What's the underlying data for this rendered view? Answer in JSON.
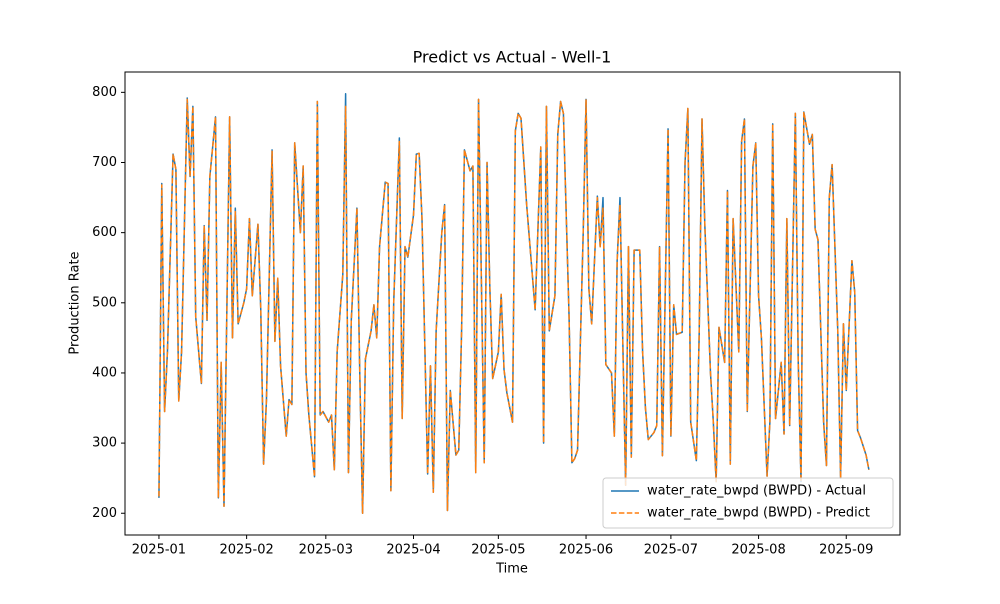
{
  "chart_data": {
    "type": "line",
    "title": "Predict vs Actual - Well-1",
    "xlabel": "Time",
    "ylabel": "Production Rate",
    "x": [
      "2025-01-01",
      "2025-01-02",
      "2025-01-03",
      "2025-01-04",
      "2025-01-06",
      "2025-01-07",
      "2025-01-08",
      "2025-01-09",
      "2025-01-11",
      "2025-01-12",
      "2025-01-13",
      "2025-01-14",
      "2025-01-16",
      "2025-01-17",
      "2025-01-18",
      "2025-01-19",
      "2025-01-21",
      "2025-01-22",
      "2025-01-23",
      "2025-01-24",
      "2025-01-26",
      "2025-01-27",
      "2025-01-28",
      "2025-01-29",
      "2025-01-31",
      "2025-02-01",
      "2025-02-02",
      "2025-02-03",
      "2025-02-05",
      "2025-02-06",
      "2025-02-07",
      "2025-02-08",
      "2025-02-10",
      "2025-02-11",
      "2025-02-12",
      "2025-02-13",
      "2025-02-15",
      "2025-02-16",
      "2025-02-17",
      "2025-02-18",
      "2025-02-20",
      "2025-02-21",
      "2025-02-22",
      "2025-02-23",
      "2025-02-25",
      "2025-02-26",
      "2025-02-27",
      "2025-02-28",
      "2025-03-02",
      "2025-03-03",
      "2025-03-04",
      "2025-03-05",
      "2025-03-07",
      "2025-03-08",
      "2025-03-09",
      "2025-03-10",
      "2025-03-12",
      "2025-03-13",
      "2025-03-14",
      "2025-03-15",
      "2025-03-17",
      "2025-03-18",
      "2025-03-19",
      "2025-03-20",
      "2025-03-22",
      "2025-03-23",
      "2025-03-24",
      "2025-03-25",
      "2025-03-27",
      "2025-03-28",
      "2025-03-29",
      "2025-03-30",
      "2025-04-01",
      "2025-04-02",
      "2025-04-03",
      "2025-04-04",
      "2025-04-06",
      "2025-04-07",
      "2025-04-08",
      "2025-04-09",
      "2025-04-11",
      "2025-04-12",
      "2025-04-13",
      "2025-04-14",
      "2025-04-16",
      "2025-04-17",
      "2025-04-18",
      "2025-04-19",
      "2025-04-21",
      "2025-04-22",
      "2025-04-23",
      "2025-04-24",
      "2025-04-26",
      "2025-04-27",
      "2025-04-28",
      "2025-04-29",
      "2025-05-01",
      "2025-05-02",
      "2025-05-03",
      "2025-05-04",
      "2025-05-06",
      "2025-05-07",
      "2025-05-08",
      "2025-05-09",
      "2025-05-11",
      "2025-05-12",
      "2025-05-13",
      "2025-05-14",
      "2025-05-16",
      "2025-05-17",
      "2025-05-18",
      "2025-05-19",
      "2025-05-21",
      "2025-05-22",
      "2025-05-23",
      "2025-05-24",
      "2025-05-26",
      "2025-05-27",
      "2025-05-28",
      "2025-05-29",
      "2025-05-31",
      "2025-06-01",
      "2025-06-02",
      "2025-06-03",
      "2025-06-05",
      "2025-06-06",
      "2025-06-07",
      "2025-06-08",
      "2025-06-10",
      "2025-06-11",
      "2025-06-12",
      "2025-06-13",
      "2025-06-15",
      "2025-06-16",
      "2025-06-17",
      "2025-06-18",
      "2025-06-20",
      "2025-06-21",
      "2025-06-22",
      "2025-06-23",
      "2025-06-25",
      "2025-06-26",
      "2025-06-27",
      "2025-06-28",
      "2025-06-30",
      "2025-07-01",
      "2025-07-02",
      "2025-07-03",
      "2025-07-05",
      "2025-07-06",
      "2025-07-07",
      "2025-07-08",
      "2025-07-10",
      "2025-07-11",
      "2025-07-12",
      "2025-07-13",
      "2025-07-15",
      "2025-07-16",
      "2025-07-17",
      "2025-07-18",
      "2025-07-20",
      "2025-07-21",
      "2025-07-22",
      "2025-07-23",
      "2025-07-25",
      "2025-07-26",
      "2025-07-27",
      "2025-07-28",
      "2025-07-30",
      "2025-07-31",
      "2025-08-01",
      "2025-08-02",
      "2025-08-04",
      "2025-08-05",
      "2025-08-06",
      "2025-08-07",
      "2025-08-09",
      "2025-08-10",
      "2025-08-11",
      "2025-08-12",
      "2025-08-14",
      "2025-08-15",
      "2025-08-16",
      "2025-08-17",
      "2025-08-19",
      "2025-08-20",
      "2025-08-21",
      "2025-08-22",
      "2025-08-24",
      "2025-08-25",
      "2025-08-26",
      "2025-08-27",
      "2025-08-29",
      "2025-08-30",
      "2025-08-31",
      "2025-09-01",
      "2025-09-03",
      "2025-09-04",
      "2025-09-05",
      "2025-09-06",
      "2025-09-08",
      "2025-09-09"
    ],
    "series": [
      {
        "name": "water_rate_bwpd (BWPD) - Actual",
        "color": "#1f77b4",
        "dash": false,
        "values": [
          222,
          670,
          345,
          430,
          712,
          690,
          360,
          430,
          792,
          680,
          780,
          480,
          385,
          610,
          475,
          680,
          765,
          222,
          415,
          210,
          765,
          450,
          635,
          470,
          500,
          520,
          620,
          510,
          612,
          490,
          270,
          360,
          718,
          445,
          535,
          410,
          310,
          362,
          355,
          728,
          600,
          695,
          400,
          340,
          252,
          787,
          340,
          345,
          330,
          340,
          262,
          430,
          540,
          798,
          258,
          475,
          635,
          400,
          200,
          420,
          460,
          497,
          450,
          580,
          672,
          670,
          232,
          500,
          735,
          335,
          580,
          565,
          625,
          712,
          713,
          620,
          256,
          410,
          230,
          460,
          600,
          640,
          204,
          375,
          283,
          290,
          460,
          718,
          688,
          695,
          258,
          790,
          272,
          700,
          520,
          392,
          430,
          512,
          405,
          372,
          330,
          745,
          770,
          763,
          640,
          590,
          540,
          490,
          722,
          300,
          780,
          460,
          510,
          740,
          787,
          770,
          480,
          272,
          278,
          290,
          600,
          790,
          520,
          470,
          652,
          580,
          650,
          412,
          400,
          310,
          560,
          650,
          240,
          580,
          280,
          575,
          575,
          430,
          350,
          305,
          315,
          325,
          580,
          282,
          748,
          310,
          497,
          455,
          458,
          700,
          777,
          330,
          275,
          455,
          762,
          610,
          400,
          330,
          245,
          465,
          415,
          660,
          270,
          620,
          430,
          730,
          762,
          345,
          695,
          728,
          510,
          450,
          253,
          330,
          755,
          335,
          415,
          313,
          620,
          325,
          770,
          420,
          245,
          772,
          726,
          740,
          605,
          590,
          330,
          268,
          650,
          697,
          460,
          250,
          470,
          375,
          560,
          515,
          318,
          308,
          283,
          262
        ]
      },
      {
        "name": "water_rate_bwpd (BWPD) - Predict",
        "color": "#ff7f0e",
        "dash": true,
        "values": [
          224,
          668,
          345,
          430,
          712,
          690,
          360,
          430,
          790,
          680,
          780,
          480,
          385,
          610,
          475,
          680,
          765,
          222,
          415,
          210,
          765,
          450,
          630,
          470,
          500,
          520,
          620,
          510,
          612,
          490,
          270,
          360,
          716,
          445,
          535,
          410,
          310,
          362,
          355,
          728,
          600,
          695,
          400,
          340,
          252,
          787,
          340,
          345,
          330,
          340,
          262,
          430,
          540,
          780,
          258,
          475,
          635,
          400,
          200,
          420,
          460,
          497,
          450,
          580,
          672,
          670,
          232,
          500,
          730,
          335,
          580,
          565,
          625,
          712,
          713,
          620,
          256,
          410,
          230,
          460,
          600,
          640,
          204,
          375,
          283,
          290,
          460,
          718,
          688,
          695,
          258,
          790,
          272,
          700,
          520,
          392,
          430,
          512,
          405,
          372,
          330,
          745,
          770,
          763,
          640,
          590,
          540,
          490,
          722,
          300,
          780,
          460,
          510,
          740,
          787,
          770,
          480,
          272,
          278,
          290,
          600,
          790,
          520,
          470,
          650,
          580,
          635,
          412,
          400,
          310,
          560,
          640,
          240,
          580,
          280,
          575,
          575,
          430,
          350,
          305,
          315,
          325,
          580,
          282,
          748,
          310,
          497,
          455,
          458,
          700,
          777,
          330,
          275,
          455,
          762,
          610,
          400,
          330,
          245,
          465,
          415,
          660,
          270,
          620,
          430,
          730,
          762,
          345,
          695,
          728,
          510,
          450,
          253,
          330,
          755,
          335,
          415,
          313,
          620,
          325,
          770,
          420,
          245,
          772,
          726,
          740,
          605,
          590,
          330,
          268,
          650,
          697,
          460,
          250,
          470,
          375,
          560,
          515,
          318,
          308,
          283,
          262
        ]
      }
    ],
    "xlim": [
      "2024-12-20",
      "2025-09-20"
    ],
    "xticks": [
      {
        "value": "2025-01-01",
        "label": "2025-01"
      },
      {
        "value": "2025-02-01",
        "label": "2025-02"
      },
      {
        "value": "2025-03-01",
        "label": "2025-03"
      },
      {
        "value": "2025-04-01",
        "label": "2025-04"
      },
      {
        "value": "2025-05-01",
        "label": "2025-05"
      },
      {
        "value": "2025-06-01",
        "label": "2025-06"
      },
      {
        "value": "2025-07-01",
        "label": "2025-07"
      },
      {
        "value": "2025-08-01",
        "label": "2025-08"
      },
      {
        "value": "2025-09-01",
        "label": "2025-09"
      }
    ],
    "ylim": [
      169,
      829
    ],
    "yticks": [
      200,
      300,
      400,
      500,
      600,
      700,
      800
    ],
    "grid": false,
    "legend": "lower right"
  }
}
